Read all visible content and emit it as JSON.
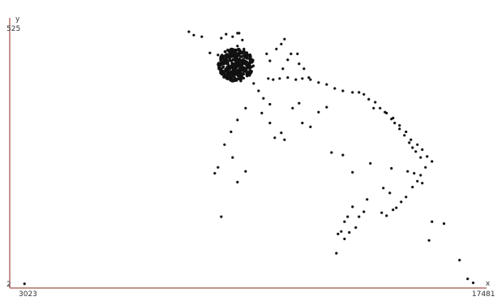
{
  "chart_data": {
    "type": "scatter",
    "xlabel": "x",
    "ylabel": "y",
    "xlim": [
      3023,
      17481
    ],
    "ylim": [
      2,
      525
    ],
    "x_tick_labels": [
      "3023",
      "17481"
    ],
    "y_tick_labels": [
      "525",
      "2"
    ],
    "grid": false,
    "point_color": "#111111",
    "axis_color": "#8b2a1a",
    "series": [
      {
        "points": [
          [
            3478,
            4
          ],
          [
            16900,
            52
          ],
          [
            17150,
            14
          ],
          [
            17320,
            6
          ],
          [
            16050,
            130
          ],
          [
            16420,
            126
          ],
          [
            15960,
            92
          ],
          [
            13100,
            66
          ],
          [
            13350,
            95
          ],
          [
            13500,
            108
          ],
          [
            13700,
            118
          ],
          [
            13800,
            140
          ],
          [
            13950,
            150
          ],
          [
            13450,
            140
          ],
          [
            13350,
            130
          ],
          [
            13250,
            110
          ],
          [
            13150,
            105
          ],
          [
            13600,
            160
          ],
          [
            14050,
            175
          ],
          [
            14500,
            148
          ],
          [
            14650,
            142
          ],
          [
            14850,
            154
          ],
          [
            14950,
            158
          ],
          [
            15100,
            170
          ],
          [
            15250,
            180
          ],
          [
            15450,
            200
          ],
          [
            15600,
            212
          ],
          [
            15750,
            208
          ],
          [
            15850,
            240
          ],
          [
            15700,
            260
          ],
          [
            15550,
            272
          ],
          [
            15450,
            280
          ],
          [
            15350,
            290
          ],
          [
            15200,
            305
          ],
          [
            15050,
            318
          ],
          [
            14900,
            330
          ],
          [
            14800,
            338
          ],
          [
            14600,
            352
          ],
          [
            14450,
            360
          ],
          [
            14300,
            372
          ],
          [
            14100,
            378
          ],
          [
            13950,
            388
          ],
          [
            13800,
            392
          ],
          [
            13600,
            392
          ],
          [
            13300,
            395
          ],
          [
            13050,
            400
          ],
          [
            12800,
            408
          ],
          [
            12550,
            412
          ],
          [
            12300,
            418
          ],
          [
            12050,
            420
          ],
          [
            11850,
            418
          ],
          [
            11600,
            422
          ],
          [
            11350,
            420
          ],
          [
            11150,
            418
          ],
          [
            11000,
            420
          ],
          [
            11450,
            440
          ],
          [
            11600,
            458
          ],
          [
            11700,
            470
          ],
          [
            11900,
            470
          ],
          [
            11950,
            450
          ],
          [
            12100,
            440
          ],
          [
            12250,
            422
          ],
          [
            11250,
            480
          ],
          [
            11400,
            490
          ],
          [
            11500,
            500
          ],
          [
            11050,
            456
          ],
          [
            10950,
            470
          ],
          [
            11750,
            360
          ],
          [
            12050,
            330
          ],
          [
            12300,
            322
          ],
          [
            12550,
            352
          ],
          [
            12800,
            362
          ],
          [
            12950,
            270
          ],
          [
            13300,
            265
          ],
          [
            13600,
            230
          ],
          [
            14250,
            360
          ],
          [
            14650,
            350
          ],
          [
            14850,
            340
          ],
          [
            15050,
            325
          ],
          [
            15250,
            312
          ],
          [
            15400,
            296
          ],
          [
            15600,
            286
          ],
          [
            15750,
            276
          ],
          [
            15900,
            262
          ],
          [
            16050,
            252
          ],
          [
            15300,
            232
          ],
          [
            15500,
            228
          ],
          [
            15700,
            224
          ],
          [
            14150,
            248
          ],
          [
            14800,
            238
          ],
          [
            14550,
            198
          ],
          [
            14750,
            188
          ],
          [
            10550,
            410
          ],
          [
            10700,
            395
          ],
          [
            10850,
            380
          ],
          [
            11050,
            330
          ],
          [
            11200,
            300
          ],
          [
            10300,
            360
          ],
          [
            10050,
            336
          ],
          [
            9850,
            312
          ],
          [
            9650,
            286
          ],
          [
            9450,
            240
          ],
          [
            9350,
            228
          ],
          [
            9900,
            260
          ],
          [
            10300,
            232
          ],
          [
            10050,
            210
          ],
          [
            9550,
            140
          ],
          [
            11400,
            310
          ],
          [
            11500,
            296
          ],
          [
            11950,
            370
          ],
          [
            10800,
            350
          ],
          [
            11050,
            368
          ],
          [
            9900,
            505
          ],
          [
            10050,
            512
          ],
          [
            10200,
            498
          ],
          [
            10250,
            480
          ],
          [
            9550,
            502
          ],
          [
            9700,
            510
          ],
          [
            8550,
            515
          ],
          [
            8700,
            508
          ],
          [
            8950,
            505
          ],
          [
            10100,
            512
          ],
          [
            9200,
            472
          ],
          [
            9450,
            468
          ],
          [
            9800,
            470
          ],
          [
            10050,
            486
          ]
        ],
        "cluster": {
          "center": [
            10000,
            448
          ],
          "spread": [
            550,
            34
          ],
          "count": 420
        }
      }
    ]
  }
}
